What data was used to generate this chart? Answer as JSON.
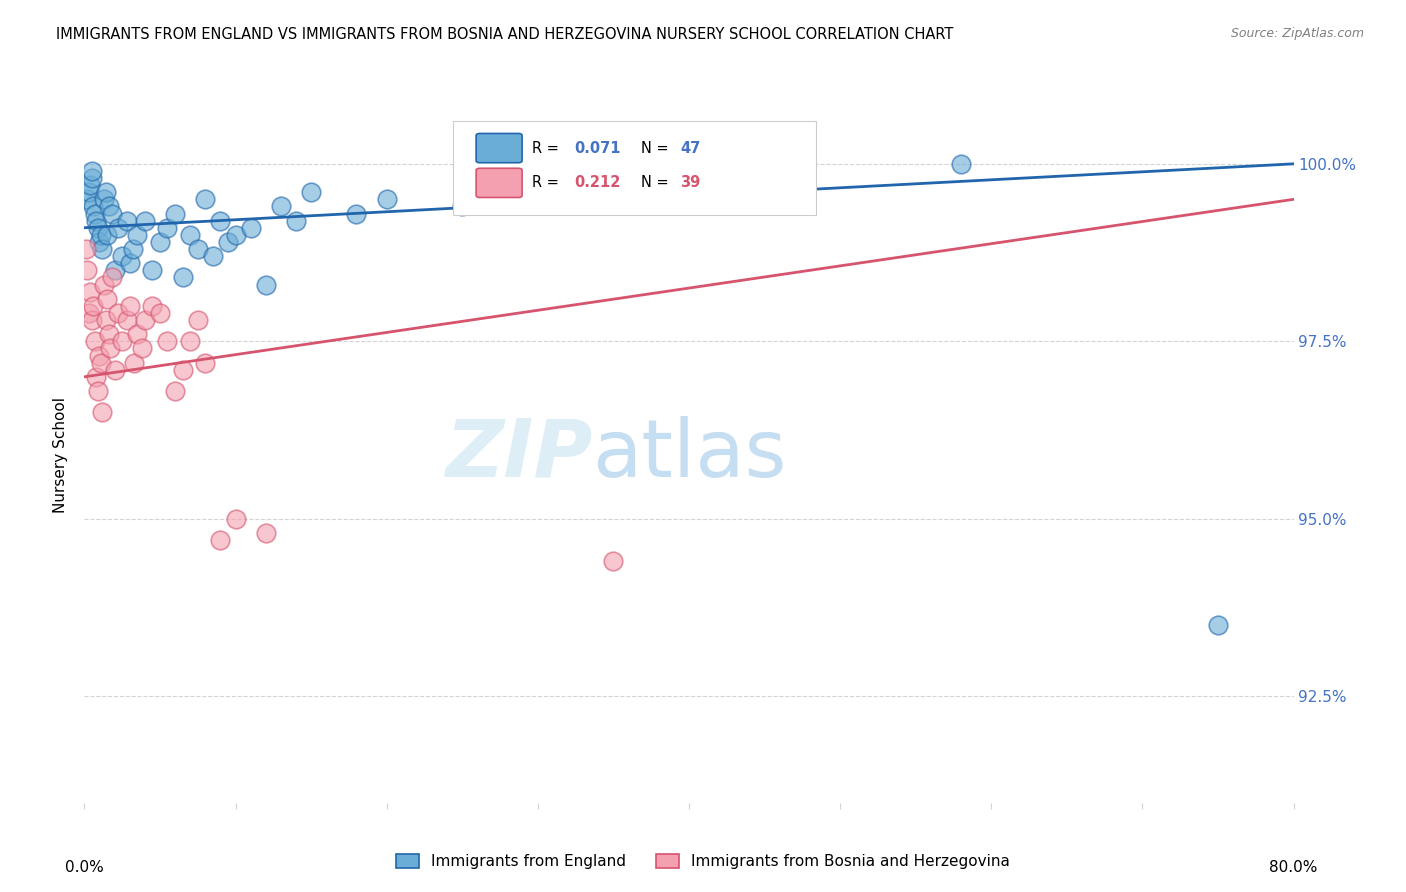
{
  "title": "IMMIGRANTS FROM ENGLAND VS IMMIGRANTS FROM BOSNIA AND HERZEGOVINA NURSERY SCHOOL CORRELATION CHART",
  "source": "Source: ZipAtlas.com",
  "ylabel": "Nursery School",
  "ytick_values": [
    92.5,
    95.0,
    97.5,
    100.0
  ],
  "legend_england": "Immigrants from England",
  "legend_bosnia": "Immigrants from Bosnia and Herzegovina",
  "R_england": 0.071,
  "N_england": 47,
  "R_bosnia": 0.212,
  "N_bosnia": 39,
  "england_color": "#6aaed6",
  "bosnia_color": "#f4a0b0",
  "england_line_color": "#2166ac",
  "bosnia_line_color": "#d6546e",
  "england_scatter_x": [
    0.2,
    0.3,
    0.4,
    0.5,
    0.5,
    0.6,
    0.7,
    0.8,
    0.9,
    1.0,
    1.1,
    1.2,
    1.3,
    1.4,
    1.5,
    1.6,
    1.8,
    2.0,
    2.2,
    2.5,
    2.8,
    3.0,
    3.2,
    3.5,
    4.0,
    4.5,
    5.0,
    5.5,
    6.0,
    6.5,
    7.0,
    7.5,
    8.0,
    8.5,
    9.0,
    9.5,
    10.0,
    11.0,
    12.0,
    13.0,
    14.0,
    15.0,
    18.0,
    20.0,
    25.0,
    58.0,
    75.0
  ],
  "england_scatter_y": [
    99.5,
    99.6,
    99.7,
    99.8,
    99.9,
    99.4,
    99.3,
    99.2,
    99.1,
    98.9,
    99.0,
    98.8,
    99.5,
    99.6,
    99.0,
    99.4,
    99.3,
    98.5,
    99.1,
    98.7,
    99.2,
    98.6,
    98.8,
    99.0,
    99.2,
    98.5,
    98.9,
    99.1,
    99.3,
    98.4,
    99.0,
    98.8,
    99.5,
    98.7,
    99.2,
    98.9,
    99.0,
    99.1,
    98.3,
    99.4,
    99.2,
    99.6,
    99.3,
    99.5,
    99.4,
    100.0,
    93.5
  ],
  "bosnia_scatter_x": [
    0.1,
    0.2,
    0.3,
    0.4,
    0.5,
    0.6,
    0.7,
    0.8,
    0.9,
    1.0,
    1.1,
    1.2,
    1.3,
    1.4,
    1.5,
    1.6,
    1.7,
    1.8,
    2.0,
    2.2,
    2.5,
    2.8,
    3.0,
    3.3,
    3.5,
    3.8,
    4.0,
    4.5,
    5.0,
    5.5,
    6.0,
    6.5,
    7.0,
    7.5,
    8.0,
    9.0,
    10.0,
    12.0,
    35.0
  ],
  "bosnia_scatter_y": [
    98.8,
    98.5,
    97.9,
    98.2,
    97.8,
    98.0,
    97.5,
    97.0,
    96.8,
    97.3,
    97.2,
    96.5,
    98.3,
    97.8,
    98.1,
    97.6,
    97.4,
    98.4,
    97.1,
    97.9,
    97.5,
    97.8,
    98.0,
    97.2,
    97.6,
    97.4,
    97.8,
    98.0,
    97.9,
    97.5,
    96.8,
    97.1,
    97.5,
    97.8,
    97.2,
    94.7,
    95.0,
    94.8,
    94.4
  ],
  "xlim": [
    0.0,
    80.0
  ],
  "ylim": [
    91.0,
    100.8
  ],
  "eng_line_x0": 0.0,
  "eng_line_y0": 99.1,
  "eng_line_x1": 80.0,
  "eng_line_y1": 100.0,
  "bos_line_x0": 0.0,
  "bos_line_y0": 97.0,
  "bos_line_x1": 80.0,
  "bos_line_y1": 99.5
}
